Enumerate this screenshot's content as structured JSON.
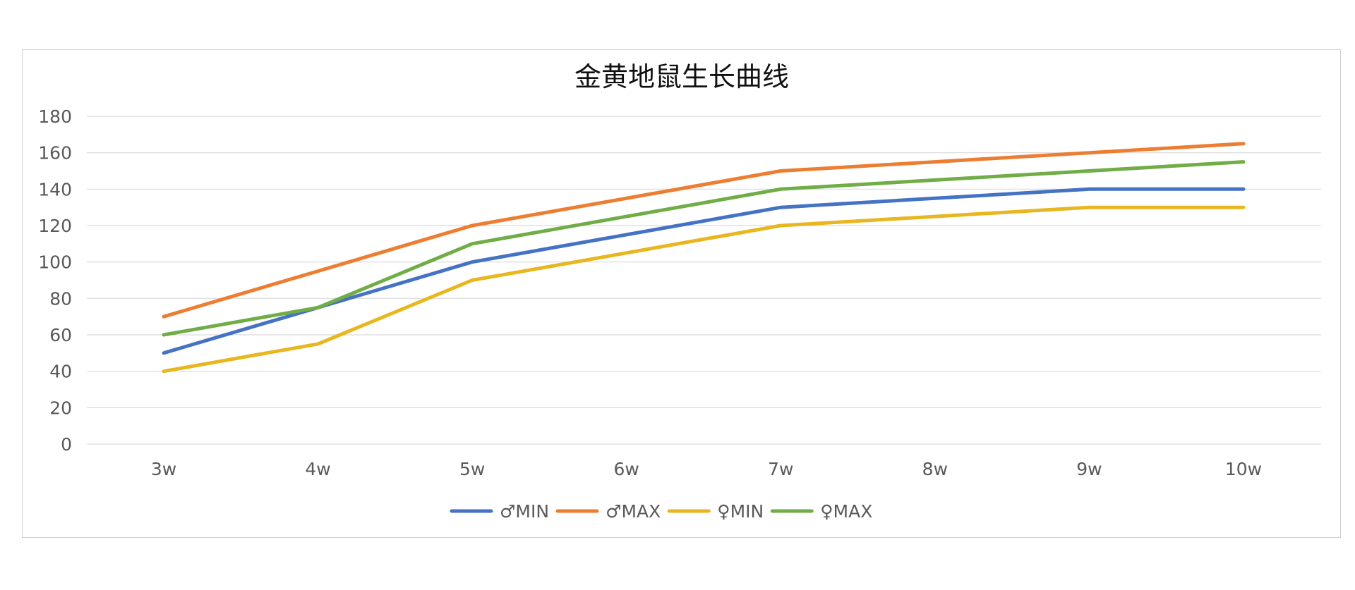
{
  "chart_data": {
    "type": "line",
    "title": "金黄地鼠生长曲线",
    "xlabel": "",
    "ylabel": "",
    "categories": [
      "3w",
      "4w",
      "5w",
      "6w",
      "7w",
      "8w",
      "9w",
      "10w"
    ],
    "ylim": [
      0,
      180
    ],
    "yticks": [
      0,
      20,
      40,
      60,
      80,
      100,
      120,
      140,
      160,
      180
    ],
    "grid": true,
    "legend_position": "bottom",
    "series": [
      {
        "name": "♂MIN",
        "color": "#4472C4",
        "values": [
          50,
          75,
          100,
          115,
          130,
          135,
          140,
          140
        ]
      },
      {
        "name": "♂MAX",
        "color": "#ED7D31",
        "values": [
          70,
          95,
          120,
          135,
          150,
          155,
          160,
          165
        ]
      },
      {
        "name": "♀MIN",
        "color": "#E8B71F",
        "values": [
          40,
          55,
          90,
          105,
          120,
          125,
          130,
          130
        ]
      },
      {
        "name": "♀MAX",
        "color": "#70AD47",
        "values": [
          60,
          75,
          110,
          125,
          140,
          145,
          150,
          155
        ]
      }
    ]
  }
}
